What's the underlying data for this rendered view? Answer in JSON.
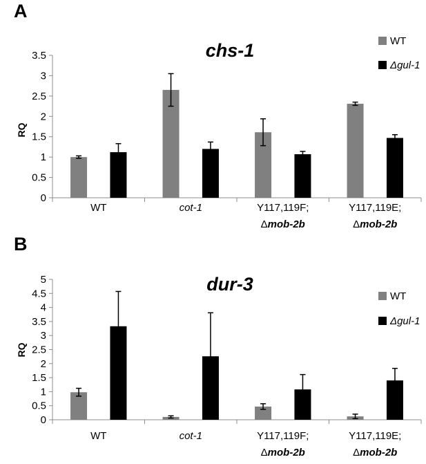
{
  "chart_data": [
    {
      "panel": "A",
      "type": "bar",
      "title": "chs-1",
      "ylabel": "RQ",
      "ylim": [
        0,
        3.5
      ],
      "yticks": [
        "0",
        "0.5",
        "1",
        "1.5",
        "2",
        "2.5",
        "3",
        "3.5"
      ],
      "categories": [
        {
          "line1": "WT",
          "line2": "",
          "italic1": false
        },
        {
          "line1": "cot-1",
          "line2": "",
          "italic1": true
        },
        {
          "line1": "Y117,119F;",
          "line2_prefix": "Δ",
          "line2": "mob-2b",
          "italic1": false
        },
        {
          "line1": "Y117,119E;",
          "line2_prefix": "Δ",
          "line2": "mob-2b",
          "italic1": false
        }
      ],
      "series": [
        {
          "name": "WT",
          "color": "#808080",
          "values": [
            1.0,
            2.65,
            1.61,
            2.31
          ],
          "errors": [
            0.03,
            0.4,
            0.33,
            0.04
          ]
        },
        {
          "name": "Δgul-1",
          "color": "#000000",
          "values": [
            1.12,
            1.2,
            1.07,
            1.47
          ],
          "errors": [
            0.21,
            0.17,
            0.07,
            0.08
          ]
        }
      ],
      "legend_position": "top-right"
    },
    {
      "panel": "B",
      "type": "bar",
      "title": "dur-3",
      "ylabel": "RQ",
      "ylim": [
        0,
        5
      ],
      "yticks": [
        "0",
        "0.5",
        "1",
        "1.5",
        "2",
        "2.5",
        "3",
        "3.5",
        "4",
        "4.5",
        "5"
      ],
      "categories": [
        {
          "line1": "WT",
          "line2": "",
          "italic1": false
        },
        {
          "line1": "cot-1",
          "line2": "",
          "italic1": true
        },
        {
          "line1": "Y117,119F;",
          "line2_prefix": "Δ",
          "line2": "mob-2b",
          "italic1": false
        },
        {
          "line1": "Y117,119E;",
          "line2_prefix": "Δ",
          "line2": "mob-2b",
          "italic1": false
        }
      ],
      "series": [
        {
          "name": "WT",
          "color": "#808080",
          "values": [
            0.98,
            0.1,
            0.47,
            0.12
          ],
          "errors": [
            0.14,
            0.04,
            0.1,
            0.08
          ]
        },
        {
          "name": "Δgul-1",
          "color": "#000000",
          "values": [
            3.33,
            2.26,
            1.08,
            1.4
          ],
          "errors": [
            1.24,
            1.55,
            0.53,
            0.43
          ]
        }
      ],
      "legend_position": "top-right"
    }
  ]
}
